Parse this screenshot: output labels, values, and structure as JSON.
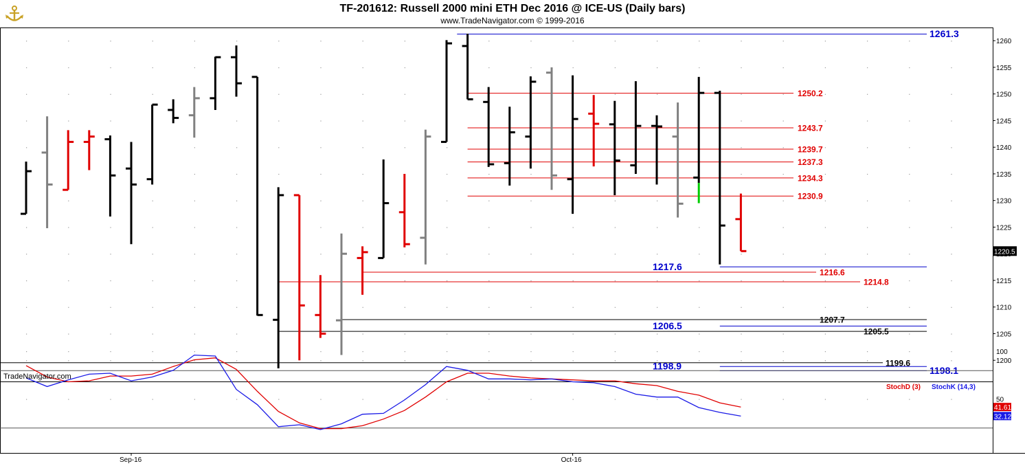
{
  "header": {
    "title": "TF-201612:  Russell 2000 mini ETH Dec 2016 @ ICE-US  (Daily bars)",
    "subtitle": "www.TradeNavigator.com © 1999-2016"
  },
  "watermark": "TradeNavigator.com",
  "chart_data": [
    {
      "type": "ohlc",
      "name": "price",
      "y_axis": {
        "min": 1196,
        "max": 1263,
        "ticks": [
          1200,
          1205,
          1210,
          1215,
          1220,
          1225,
          1230,
          1235,
          1240,
          1245,
          1250,
          1255,
          1260
        ]
      },
      "last_price_label": "1220.5",
      "bars": [
        {
          "o": 1227.5,
          "h": 1237.3,
          "l": 1227.5,
          "c": 1235.5,
          "color": "#000000"
        },
        {
          "o": 1239,
          "h": 1245.8,
          "l": 1224.8,
          "c": 1233,
          "color": "#808080"
        },
        {
          "o": 1232,
          "h": 1243.2,
          "l": 1232,
          "c": 1241,
          "color": "#e00000"
        },
        {
          "o": 1241,
          "h": 1243.2,
          "l": 1235.7,
          "c": 1242,
          "color": "#e00000"
        },
        {
          "o": 1241.5,
          "h": 1242.2,
          "l": 1227,
          "c": 1234.7,
          "color": "#000000"
        },
        {
          "o": 1236,
          "h": 1241,
          "l": 1221.8,
          "c": 1233,
          "color": "#000000"
        },
        {
          "o": 1234,
          "h": 1248,
          "l": 1233,
          "c": 1248,
          "color": "#000000"
        },
        {
          "o": 1247,
          "h": 1249,
          "l": 1244.5,
          "c": 1245.5,
          "color": "#000000"
        },
        {
          "o": 1246,
          "h": 1251.3,
          "l": 1241.8,
          "c": 1249.2,
          "color": "#808080"
        },
        {
          "o": 1249.2,
          "h": 1257,
          "l": 1247,
          "c": 1256.9,
          "color": "#000000"
        },
        {
          "o": 1256.9,
          "h": 1259.1,
          "l": 1249.5,
          "c": 1252,
          "color": "#000000"
        },
        {
          "o": 1253.2,
          "h": 1253.2,
          "l": 1208.4,
          "c": 1208.5,
          "color": "#000000"
        },
        {
          "o": 1207.6,
          "h": 1232.5,
          "l": 1198.5,
          "c": 1231,
          "color": "#000000"
        },
        {
          "o": 1231,
          "h": 1231,
          "l": 1200,
          "c": 1210.3,
          "color": "#e00000"
        },
        {
          "o": 1208.5,
          "h": 1216,
          "l": 1204.2,
          "c": 1205,
          "color": "#e00000"
        },
        {
          "o": 1207.5,
          "h": 1223.8,
          "l": 1201,
          "c": 1220,
          "color": "#808080"
        },
        {
          "o": 1219.2,
          "h": 1221.4,
          "l": 1212.3,
          "c": 1220.3,
          "color": "#e00000"
        },
        {
          "o": 1219.2,
          "h": 1237.7,
          "l": 1219.2,
          "c": 1229.5,
          "color": "#000000"
        },
        {
          "o": 1227.8,
          "h": 1235,
          "l": 1221.2,
          "c": 1221.8,
          "color": "#e00000"
        },
        {
          "o": 1223,
          "h": 1243.3,
          "l": 1218,
          "c": 1242,
          "color": "#808080"
        },
        {
          "o": 1241,
          "h": 1260.1,
          "l": 1241,
          "c": 1259.5,
          "color": "#000000"
        },
        {
          "o": 1259,
          "h": 1261.3,
          "l": 1249,
          "c": 1249,
          "color": "#000000"
        },
        {
          "o": 1248.5,
          "h": 1251.3,
          "l": 1236.3,
          "c": 1236.8,
          "color": "#000000"
        },
        {
          "o": 1237,
          "h": 1247.6,
          "l": 1232.8,
          "c": 1242.8,
          "color": "#000000"
        },
        {
          "o": 1242,
          "h": 1253.3,
          "l": 1236,
          "c": 1252.3,
          "color": "#000000"
        },
        {
          "o": 1254,
          "h": 1255,
          "l": 1232,
          "c": 1234.7,
          "color": "#808080"
        },
        {
          "o": 1234,
          "h": 1253.5,
          "l": 1227.5,
          "c": 1245.3,
          "color": "#000000"
        },
        {
          "o": 1246.3,
          "h": 1249.8,
          "l": 1236.4,
          "c": 1244.4,
          "color": "#e00000"
        },
        {
          "o": 1244.3,
          "h": 1248.7,
          "l": 1231,
          "c": 1237.5,
          "color": "#000000"
        },
        {
          "o": 1236.6,
          "h": 1252.4,
          "l": 1235,
          "c": 1244,
          "color": "#000000"
        },
        {
          "o": 1244,
          "h": 1246,
          "l": 1233,
          "c": 1243.9,
          "color": "#000000"
        },
        {
          "o": 1242,
          "h": 1248.4,
          "l": 1226.8,
          "c": 1229.4,
          "color": "#808080"
        },
        {
          "o": 1234.3,
          "h": 1253.2,
          "l": 1229.5,
          "c": 1250.2,
          "color": "#000000",
          "low_color": "#00cc00",
          "low_from": 1233.3
        },
        {
          "o": 1250.2,
          "h": 1250.6,
          "l": 1218,
          "c": 1225.3,
          "color": "#000000"
        },
        {
          "o": 1226.5,
          "h": 1231.3,
          "l": 1220.5,
          "c": 1220.5,
          "color": "#e00000"
        }
      ],
      "levels": [
        {
          "value": 1261.3,
          "label": "1261.3",
          "color": "#0000cc",
          "from_bar": 20.5,
          "label_pos": "far"
        },
        {
          "value": 1250.2,
          "label": "1250.2",
          "color": "#e00000",
          "from_bar": 21,
          "label_pos": "mid"
        },
        {
          "value": 1243.7,
          "label": "1243.7",
          "color": "#e00000",
          "from_bar": 21,
          "label_pos": "mid"
        },
        {
          "value": 1239.7,
          "label": "1239.7",
          "color": "#e00000",
          "from_bar": 21,
          "label_pos": "mid"
        },
        {
          "value": 1237.3,
          "label": "1237.3",
          "color": "#e00000",
          "from_bar": 21,
          "label_pos": "mid"
        },
        {
          "value": 1234.3,
          "label": "1234.3",
          "color": "#e00000",
          "from_bar": 21,
          "label_pos": "mid"
        },
        {
          "value": 1230.9,
          "label": "1230.9",
          "color": "#e00000",
          "from_bar": 21,
          "label_pos": "mid"
        },
        {
          "value": 1217.6,
          "label": "1217.6",
          "color": "#0000cc",
          "from_bar": 33,
          "label_pos": "left"
        },
        {
          "value": 1216.6,
          "label": "1216.6",
          "color": "#e00000",
          "from_bar": 16,
          "label_pos": "end"
        },
        {
          "value": 1214.8,
          "label": "1214.8",
          "color": "#e00000",
          "from_bar": 12,
          "label_pos": "end"
        },
        {
          "value": 1207.7,
          "label": "1207.7",
          "color": "#000000",
          "from_bar": 15,
          "label_pos": "end"
        },
        {
          "value": 1206.5,
          "label": "1206.5",
          "color": "#0000cc",
          "from_bar": 33,
          "label_pos": "left"
        },
        {
          "value": 1205.5,
          "label": "1205.5",
          "color": "#000000",
          "from_bar": 12,
          "label_pos": "end"
        },
        {
          "value": 1199.6,
          "label": "1199.6",
          "color": "#000000",
          "from_bar": -1.3,
          "label_pos": "end"
        },
        {
          "value": 1198.9,
          "label": "1198.9",
          "color": "#0000cc",
          "from_bar": 33,
          "label_pos": "left"
        },
        {
          "value": 1198.1,
          "label": "1198.1",
          "color": "#0000cc",
          "from_bar": 33,
          "label_pos": "far"
        }
      ]
    },
    {
      "type": "line",
      "name": "stochastic",
      "y_axis": {
        "min": 0,
        "max": 100,
        "ticks": [
          50,
          100
        ]
      },
      "series": [
        {
          "name": "StochD (3)",
          "color": "#e00000",
          "last_label": "41.61",
          "values": [
            85,
            73,
            68,
            69,
            74,
            74,
            76,
            84,
            91,
            93,
            81,
            58,
            37,
            25,
            19,
            19,
            22,
            29,
            38,
            52,
            68,
            77,
            77,
            74,
            72,
            71,
            70,
            69,
            69,
            66,
            64,
            58,
            54,
            46,
            41.61
          ]
        },
        {
          "name": "StochK (14,3)",
          "color": "#1a1ae6",
          "last_label": "32.12",
          "values": [
            72,
            63,
            70,
            76,
            77,
            69,
            73,
            80,
            96,
            95,
            60,
            44,
            21,
            23,
            18,
            24,
            34,
            35,
            49,
            65,
            84,
            80,
            71,
            71,
            70,
            71,
            68,
            67,
            63,
            55,
            52,
            52,
            41,
            36,
            32.12
          ]
        }
      ]
    }
  ],
  "x_axis": {
    "labels": [
      {
        "text": "Sep-16",
        "at_bar": 5
      },
      {
        "text": "Oct-16",
        "at_bar": 26
      }
    ]
  }
}
